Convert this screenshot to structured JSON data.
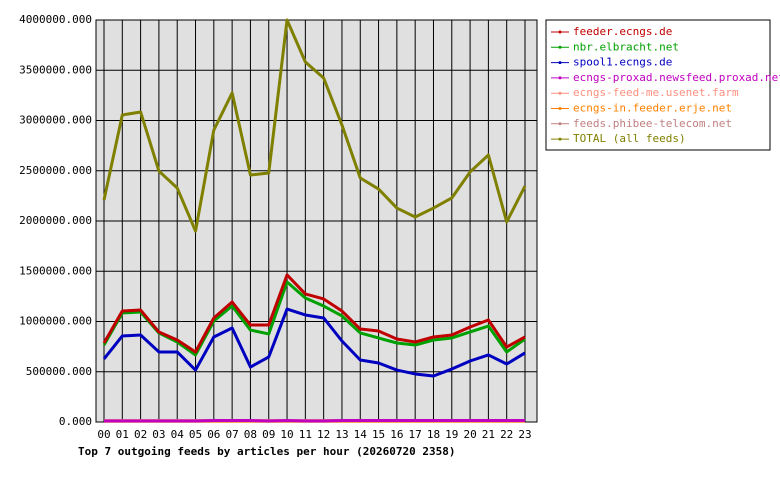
{
  "chart_data": {
    "type": "line",
    "title": "Top 7 outgoing feeds by articles per hour (20260720 2358)",
    "categories": [
      "00",
      "01",
      "02",
      "03",
      "04",
      "05",
      "06",
      "07",
      "08",
      "09",
      "10",
      "11",
      "12",
      "13",
      "14",
      "15",
      "16",
      "17",
      "18",
      "19",
      "20",
      "21",
      "22",
      "23"
    ],
    "ylim": [
      0,
      4000000
    ],
    "yticks": [
      {
        "value": 0,
        "label": "0.000"
      },
      {
        "value": 500000,
        "label": "500000.000"
      },
      {
        "value": 1000000,
        "label": "1000000.000"
      },
      {
        "value": 1500000,
        "label": "1500000.000"
      },
      {
        "value": 2000000,
        "label": "2000000.000"
      },
      {
        "value": 2500000,
        "label": "2500000.000"
      },
      {
        "value": 3000000,
        "label": "3000000.000"
      },
      {
        "value": 3500000,
        "label": "3500000.000"
      },
      {
        "value": 4000000,
        "label": "4000000.000"
      }
    ],
    "grid": true,
    "legend": "right",
    "series": [
      {
        "name": "feeder.ecngs.de",
        "color": "#c00000",
        "values": [
          786000,
          1104000,
          1114000,
          895000,
          816000,
          697000,
          1035000,
          1194000,
          965000,
          965000,
          1463000,
          1274000,
          1224000,
          1104000,
          925000,
          905000,
          826000,
          796000,
          846000,
          866000,
          945000,
          1015000,
          746000,
          846000
        ]
      },
      {
        "name": "nbr.elbracht.net",
        "color": "#00a000",
        "values": [
          766000,
          1085000,
          1095000,
          886000,
          796000,
          667000,
          1005000,
          1154000,
          915000,
          876000,
          1393000,
          1234000,
          1154000,
          1055000,
          886000,
          836000,
          786000,
          766000,
          816000,
          836000,
          896000,
          955000,
          697000,
          826000
        ]
      },
      {
        "name": "spool1.ecngs.de",
        "color": "#0000c0",
        "values": [
          627000,
          856000,
          866000,
          697000,
          697000,
          517000,
          846000,
          935000,
          547000,
          647000,
          1124000,
          1065000,
          1035000,
          806000,
          617000,
          587000,
          517000,
          478000,
          458000,
          527000,
          607000,
          667000,
          577000,
          687000
        ]
      },
      {
        "name": "ecngs-proxad.newsfeed.proxad.net",
        "color": "#c000c0",
        "values": [
          10000,
          10000,
          10000,
          10000,
          10000,
          10000,
          15000,
          15000,
          15000,
          10000,
          15000,
          10000,
          10000,
          15000,
          15000,
          15000,
          15000,
          15000,
          15000,
          15000,
          15000,
          15000,
          15000,
          15000
        ]
      },
      {
        "name": "ecngs-feed-me.usenet.farm",
        "color": "#ff9080",
        "values": [
          12000,
          12000,
          12000,
          12000,
          12000,
          12000,
          12000,
          12000,
          12000,
          12000,
          12000,
          12000,
          12000,
          12000,
          12000,
          12000,
          12000,
          12000,
          12000,
          12000,
          12000,
          12000,
          12000,
          12000
        ]
      },
      {
        "name": "ecngs-in.feeder.erje.net",
        "color": "#ff8000",
        "values": [
          8000,
          8000,
          8000,
          8000,
          8000,
          8000,
          8000,
          8000,
          8000,
          8000,
          8000,
          8000,
          8000,
          8000,
          8000,
          8000,
          8000,
          8000,
          8000,
          8000,
          8000,
          8000,
          8000,
          8000
        ]
      },
      {
        "name": "feeds.phibee-telecom.net",
        "color": "#c08080",
        "values": [
          14000,
          14000,
          14000,
          14000,
          14000,
          14000,
          12000,
          12000,
          12000,
          14000,
          12000,
          14000,
          14000,
          12000,
          12000,
          12000,
          12000,
          12000,
          12000,
          12000,
          12000,
          12000,
          12000,
          12000
        ]
      },
      {
        "name": "TOTAL (all feeds)",
        "color": "#808000",
        "values": [
          2209000,
          3055000,
          3085000,
          2497000,
          2328000,
          1900000,
          2905000,
          3274000,
          2458000,
          2478000,
          4000000,
          3582000,
          3423000,
          2955000,
          2428000,
          2318000,
          2129000,
          2040000,
          2129000,
          2229000,
          2488000,
          2657000,
          1990000,
          2348000
        ]
      }
    ]
  }
}
